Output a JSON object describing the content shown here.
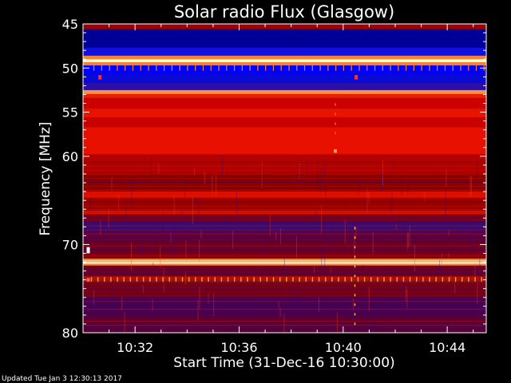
{
  "chart_data": {
    "type": "heatmap",
    "title": "Solar radio Flux (Glasgow)",
    "xlabel": "Start Time (31-Dec-16 10:30:00)",
    "ylabel": "Frequency [MHz]",
    "x_unit": "minutes after 10:30:00",
    "xlim": [
      0,
      15.5
    ],
    "ylim": [
      45,
      80
    ],
    "y_inverted": true,
    "x_ticks": [
      {
        "value": 2,
        "label": "10:32"
      },
      {
        "value": 6,
        "label": "10:36"
      },
      {
        "value": 10,
        "label": "10:40"
      },
      {
        "value": 14,
        "label": "10:44"
      }
    ],
    "y_ticks": [
      {
        "value": 45,
        "label": "45"
      },
      {
        "value": 50,
        "label": "50"
      },
      {
        "value": 55,
        "label": "55"
      },
      {
        "value": 60,
        "label": "60"
      },
      {
        "value": 70,
        "label": "70"
      },
      {
        "value": 80,
        "label": "80"
      }
    ],
    "colormap": [
      "#000080",
      "#0000ff",
      "#800000",
      "#cc0000",
      "#ff2000",
      "#ff8040",
      "#ffffa0"
    ],
    "bands": [
      {
        "from": 45.0,
        "to": 45.6,
        "color": "#a00000"
      },
      {
        "from": 45.6,
        "to": 47.7,
        "color": "#000096"
      },
      {
        "from": 47.7,
        "to": 48.6,
        "color": "#1010e0"
      },
      {
        "from": 48.6,
        "to": 49.0,
        "color": "#ff8030"
      },
      {
        "from": 49.0,
        "to": 49.35,
        "color": "#ffffc8"
      },
      {
        "from": 49.35,
        "to": 49.7,
        "color": "#ff8030"
      },
      {
        "from": 49.7,
        "to": 50.8,
        "color": "#0000ff"
      },
      {
        "from": 50.8,
        "to": 51.7,
        "color": "#0a0ad8"
      },
      {
        "from": 51.7,
        "to": 52.5,
        "color": "#2a10a8"
      },
      {
        "from": 52.5,
        "to": 52.95,
        "color": "#ff9040"
      },
      {
        "from": 52.95,
        "to": 53.4,
        "color": "#e82000"
      },
      {
        "from": 53.4,
        "to": 54.6,
        "color": "#cc0000"
      },
      {
        "from": 54.6,
        "to": 55.6,
        "color": "#e81400"
      },
      {
        "from": 55.6,
        "to": 56.7,
        "color": "#c80000"
      },
      {
        "from": 56.7,
        "to": 59.8,
        "color": "#e81000"
      },
      {
        "from": 59.8,
        "to": 62.0,
        "color": "#b00000"
      },
      {
        "from": 62.0,
        "to": 64.0,
        "color": "#8a0000"
      },
      {
        "from": 64.0,
        "to": 64.7,
        "color": "#e01000"
      },
      {
        "from": 64.7,
        "to": 66.0,
        "color": "#9a0000"
      },
      {
        "from": 66.0,
        "to": 66.6,
        "color": "#d01000"
      },
      {
        "from": 66.6,
        "to": 67.4,
        "color": "#7a0020"
      },
      {
        "from": 67.4,
        "to": 68.6,
        "color": "#3a0a70"
      },
      {
        "from": 68.6,
        "to": 69.6,
        "color": "#60003a"
      },
      {
        "from": 69.6,
        "to": 71.0,
        "color": "#6a0028"
      },
      {
        "from": 71.0,
        "to": 71.6,
        "color": "#9a0000"
      },
      {
        "from": 71.6,
        "to": 71.8,
        "color": "#ff8030"
      },
      {
        "from": 71.8,
        "to": 72.2,
        "color": "#ffffc0"
      },
      {
        "from": 72.2,
        "to": 72.4,
        "color": "#ff8030"
      },
      {
        "from": 72.4,
        "to": 73.6,
        "color": "#6a0028"
      },
      {
        "from": 73.6,
        "to": 74.3,
        "color": "#b01000"
      },
      {
        "from": 74.3,
        "to": 76.0,
        "color": "#7a0018"
      },
      {
        "from": 76.0,
        "to": 78.0,
        "color": "#4a0050"
      },
      {
        "from": 78.0,
        "to": 80.0,
        "color": "#5a0038"
      }
    ],
    "features": [
      {
        "kind": "spot",
        "x": 9.7,
        "freq_from": 59.2,
        "freq_to": 59.6,
        "color": "#ffa050"
      },
      {
        "kind": "spot",
        "x": 10.5,
        "freq_from": 50.8,
        "freq_to": 51.3,
        "color": "#ff3030"
      },
      {
        "kind": "spot",
        "x": 0.65,
        "freq_from": 50.8,
        "freq_to": 51.3,
        "color": "#ff3030"
      },
      {
        "kind": "spot",
        "x": 0.2,
        "freq_from": 70.3,
        "freq_to": 71.0,
        "color": "#ffffff"
      },
      {
        "kind": "spot",
        "x": 0.2,
        "freq_from": 73.8,
        "freq_to": 74.2,
        "color": "#ff6060"
      },
      {
        "kind": "line",
        "x": 10.45,
        "freq_from": 68.0,
        "freq_to": 79.5,
        "color": "#ffb060"
      },
      {
        "kind": "line",
        "x": 9.7,
        "freq_from": 54.0,
        "freq_to": 57.5,
        "color": "#ff6040"
      }
    ]
  },
  "footer": {
    "updated_text": "Updated Tue Jan  3 12:30:13 2017"
  }
}
